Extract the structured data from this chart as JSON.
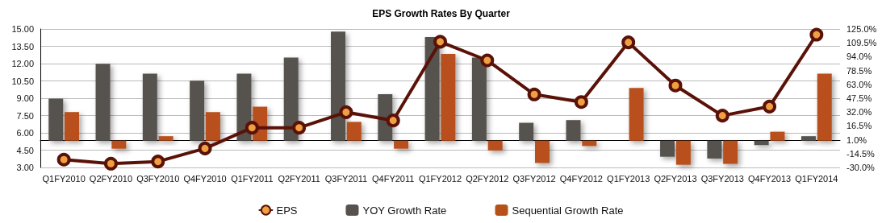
{
  "chart_data": {
    "type": "bar",
    "title": "EPS Growth Rates By Quarter",
    "categories": [
      "Q1FY2010",
      "Q2FY2010",
      "Q3FY2010",
      "Q4FY2010",
      "Q1FY2011",
      "Q2FY2011",
      "Q3FY2011",
      "Q4FY2011",
      "Q1FY2012",
      "Q2FY2012",
      "Q3FY2012",
      "Q4FY2012",
      "Q1FY2013",
      "Q2FY2013",
      "Q3FY2013",
      "Q4FY2013",
      "Q1FY2014"
    ],
    "series": [
      {
        "name": "EPS",
        "type": "line",
        "color": "#5a1208",
        "values": [
          3.68,
          3.33,
          3.51,
          4.65,
          6.44,
          6.44,
          7.79,
          7.07,
          13.89,
          12.28,
          9.33,
          8.67,
          13.84,
          10.1,
          7.49,
          8.28,
          14.51
        ]
      },
      {
        "name": "YOY Growth Rate",
        "axis": "y2",
        "color": "#575250",
        "values": [
          47,
          86,
          75,
          67,
          75,
          93,
          122,
          52,
          116,
          93,
          20,
          23,
          0,
          -18,
          -20,
          -5,
          5
        ]
      },
      {
        "name": "Sequential Growth Rate",
        "axis": "y2",
        "color": "#b8501a",
        "values": [
          32,
          -9,
          5,
          32,
          38,
          0,
          21,
          -9,
          97,
          -11,
          -25,
          -6,
          59,
          -27,
          -26,
          10,
          75
        ]
      }
    ],
    "ylim": [
      3,
      15
    ],
    "yticks": [
      {
        "value": 3,
        "label": "3.00"
      },
      {
        "value": 4.5,
        "label": "4.50"
      },
      {
        "value": 6,
        "label": "6.00"
      },
      {
        "value": 7.5,
        "label": "7.50"
      },
      {
        "value": 9,
        "label": "9.00"
      },
      {
        "value": 10.5,
        "label": "10.50"
      },
      {
        "value": 12,
        "label": "12.00"
      },
      {
        "value": 13.5,
        "label": "13.50"
      },
      {
        "value": 15,
        "label": "15.00"
      }
    ],
    "y2lim": [
      -30,
      125
    ],
    "y2ticks": [
      {
        "value": -30,
        "label": "-30.0%"
      },
      {
        "value": -14.5,
        "label": "-14.5%"
      },
      {
        "value": 1,
        "label": "1.0%"
      },
      {
        "value": 16.5,
        "label": "16.5%"
      },
      {
        "value": 32,
        "label": "32.0%"
      },
      {
        "value": 47.5,
        "label": "47.5%"
      },
      {
        "value": 63,
        "label": "63.0%"
      },
      {
        "value": 78.5,
        "label": "78.5%"
      },
      {
        "value": 94,
        "label": "94.0%"
      },
      {
        "value": 109.5,
        "label": "109.5%"
      },
      {
        "value": 125,
        "label": "125.0%"
      }
    ],
    "grid": "y",
    "legend": "bottom",
    "marker": "circle",
    "line_style": "solid"
  }
}
